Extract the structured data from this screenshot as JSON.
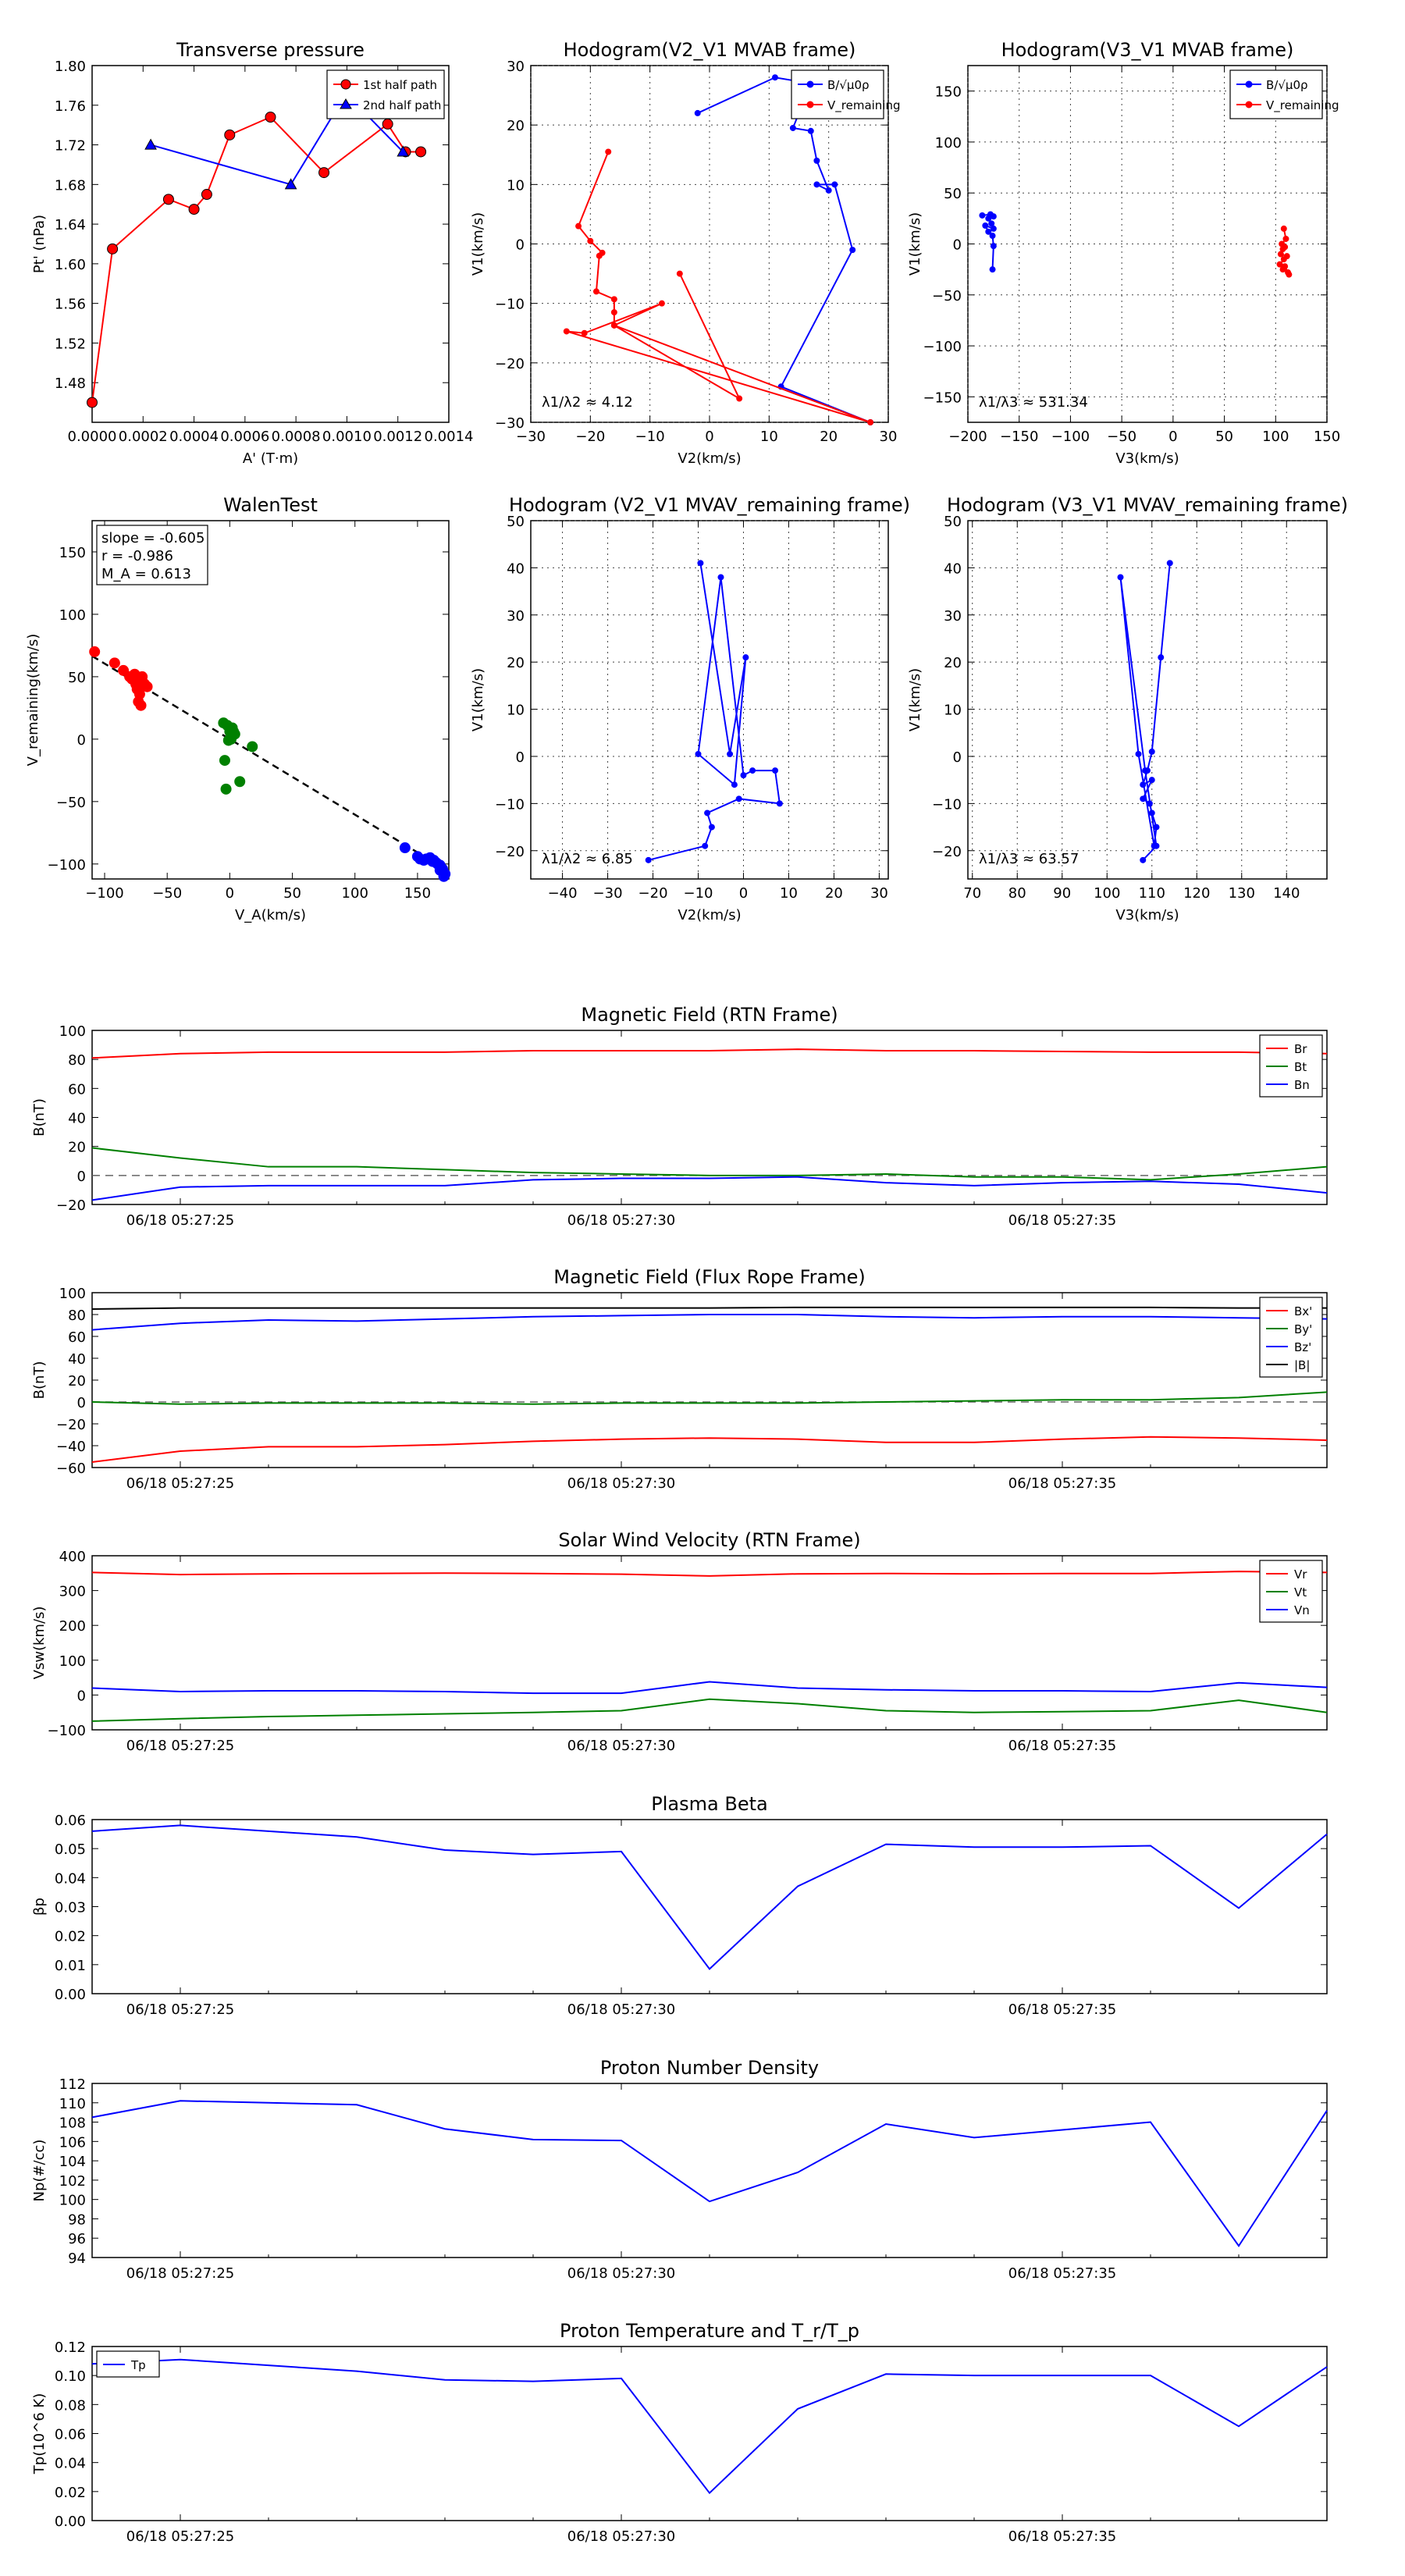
{
  "chart_data": [
    {
      "id": "tp",
      "type": "line",
      "title": "Transverse pressure",
      "xlabel": "A' (T·m)",
      "ylabel": "Pt' (nPa)",
      "xlim": [
        0,
        0.0014
      ],
      "ylim": [
        1.44,
        1.8
      ],
      "xticks": [
        "0.0000",
        "0.0002",
        "0.0004",
        "0.0006",
        "0.0008",
        "0.0010",
        "0.0012",
        "0.0014"
      ],
      "yticks": [
        "1.48",
        "1.52",
        "1.56",
        "1.60",
        "1.64",
        "1.68",
        "1.72",
        "1.76",
        "1.80"
      ],
      "legend": {
        "position": "top-right",
        "entries": [
          "1st half path",
          "2nd half path"
        ]
      },
      "series": [
        {
          "name": "1st half path",
          "color": "#ff0000",
          "marker": "circle",
          "x": [
            0.0,
            8e-05,
            0.0003,
            0.0004,
            0.00045,
            0.00054,
            0.0007,
            0.00091,
            0.00116,
            0.00123,
            0.00129
          ],
          "y": [
            1.46,
            1.615,
            1.665,
            1.655,
            1.67,
            1.73,
            1.748,
            1.692,
            1.741,
            1.713,
            1.713
          ]
        },
        {
          "name": "2nd half path",
          "color": "#0000ff",
          "marker": "triangle",
          "x": [
            0.00023,
            0.00078,
            0.00095,
            0.00106,
            0.00122
          ],
          "y": [
            1.72,
            1.68,
            1.752,
            1.755,
            1.713
          ]
        }
      ]
    },
    {
      "id": "h1",
      "type": "line",
      "title": "Hodogram(V2_V1 MVAB frame)",
      "xlabel": "V2(km/s)",
      "ylabel": "V1(km/s)",
      "xlim": [
        -30,
        30
      ],
      "ylim": [
        -30,
        30
      ],
      "xticks": [
        "−30",
        "−20",
        "−10",
        "0",
        "10",
        "20",
        "30"
      ],
      "yticks": [
        "−30",
        "−20",
        "−10",
        "0",
        "10",
        "20",
        "30"
      ],
      "legend": {
        "position": "top-right",
        "entries": [
          "B/√μ0ρ",
          "V_remaining"
        ]
      },
      "annotation": "λ1/λ2 ≈ 4.12",
      "series": [
        {
          "name": "B/√μ0ρ",
          "color": "#0000ff",
          "x": [
            -2,
            11,
            17,
            14,
            17,
            18,
            20,
            18,
            21,
            24,
            12,
            27
          ],
          "y": [
            22,
            28,
            27,
            19.5,
            19,
            14,
            9,
            10,
            10,
            -1,
            -24,
            -30
          ]
        },
        {
          "name": "V_remaining",
          "color": "#ff0000",
          "x": [
            -17,
            -22,
            -20,
            -18,
            -18.5,
            -19,
            -16,
            -16,
            -16,
            -8,
            -21,
            -24,
            27,
            -16,
            5,
            -5
          ],
          "y": [
            15.5,
            3,
            0.5,
            -1.5,
            -2,
            -8,
            -9.3,
            -11.5,
            -13.7,
            -10,
            -15,
            -14.7,
            -30,
            -13.7,
            -26,
            -5
          ]
        }
      ]
    },
    {
      "id": "h2",
      "type": "line",
      "title": "Hodogram(V3_V1 MVAB frame)",
      "xlabel": "V3(km/s)",
      "ylabel": "V1(km/s)",
      "xlim": [
        -200,
        150
      ],
      "ylim": [
        -175,
        175
      ],
      "xticks": [
        "−200",
        "−150",
        "−100",
        "−50",
        "0",
        "50",
        "100",
        "150"
      ],
      "yticks": [
        "−150",
        "−100",
        "−50",
        "0",
        "50",
        "100",
        "150"
      ],
      "legend": {
        "position": "top-right",
        "entries": [
          "B/√μ0ρ",
          "V_remaining"
        ]
      },
      "annotation": "λ1/λ3 ≈ 531.34",
      "series": [
        {
          "name": "B/√μ0ρ",
          "color": "#0000ff",
          "x": [
            -186,
            -178,
            -175,
            -180,
            -177,
            -175,
            -183,
            -180,
            -176,
            -175,
            -176
          ],
          "y": [
            28,
            29,
            27,
            25,
            20,
            15,
            18,
            12,
            8,
            -2,
            -25
          ]
        },
        {
          "name": "V_remaining",
          "color": "#ff0000",
          "x": [
            108,
            110,
            106,
            107,
            109,
            105,
            111,
            108,
            104,
            107,
            112,
            109,
            113
          ],
          "y": [
            15,
            5,
            0,
            -5,
            -3,
            -10,
            -12,
            -15,
            -20,
            -25,
            -28,
            -22,
            -30
          ]
        }
      ]
    },
    {
      "id": "walen",
      "type": "scatter",
      "title": "WalenTest",
      "xlabel": "V_A(km/s)",
      "ylabel": "V_remaining(km/s)",
      "xlim": [
        -110,
        175
      ],
      "ylim": [
        -112,
        175
      ],
      "xticks": [
        "−100",
        "−50",
        "0",
        "50",
        "100",
        "150"
      ],
      "yticks": [
        "−100",
        "−50",
        "0",
        "50",
        "100",
        "150"
      ],
      "stats": [
        "slope = -0.605",
        "r = -0.986",
        "M_A = 0.613"
      ],
      "fit_line": {
        "slope": -0.605,
        "intercept": 0
      },
      "series": [
        {
          "name": "red",
          "color": "#ff0000",
          "x": [
            -108,
            -92,
            -85,
            -80,
            -78,
            -76,
            -74,
            -72,
            -70,
            -68,
            -72,
            -74,
            -73,
            -71,
            -69,
            -66,
            -75
          ],
          "y": [
            70,
            61,
            55,
            50,
            48,
            52,
            46,
            44,
            50,
            44,
            36,
            40,
            30,
            27,
            45,
            42,
            44
          ]
        },
        {
          "name": "green",
          "color": "#008000",
          "x": [
            -5,
            -2,
            0,
            2,
            4,
            3,
            -1,
            -4,
            18,
            8,
            -3,
            1
          ],
          "y": [
            13,
            11,
            6,
            9,
            4,
            6,
            -1,
            -17,
            -6,
            -34,
            -40,
            0
          ]
        },
        {
          "name": "blue",
          "color": "#0000ff",
          "x": [
            140,
            150,
            152,
            155,
            157,
            160,
            162,
            165,
            168,
            170,
            172,
            171,
            168,
            166,
            163
          ],
          "y": [
            -87,
            -94,
            -96,
            -97,
            -96,
            -95,
            -98,
            -99,
            -101,
            -104,
            -108,
            -110,
            -105,
            -100,
            -97
          ]
        }
      ]
    },
    {
      "id": "h3",
      "type": "line",
      "title": "Hodogram (V2_V1 MVAV_remaining frame)",
      "xlabel": "V2(km/s)",
      "ylabel": "V1(km/s)",
      "xlim": [
        -47,
        32
      ],
      "ylim": [
        -26,
        50
      ],
      "xticks": [
        "−40",
        "−30",
        "−20",
        "−10",
        "0",
        "10",
        "20",
        "30"
      ],
      "yticks": [
        "−20",
        "−10",
        "0",
        "10",
        "20",
        "30",
        "40",
        "50"
      ],
      "annotation": "λ1/λ2 ≈ 6.85",
      "series": [
        {
          "name": "path",
          "color": "#0000ff",
          "x": [
            -9.5,
            -3,
            0.5,
            -2,
            -10,
            -5,
            0,
            2,
            7,
            8,
            -1,
            -8,
            -7,
            -8.5,
            -21
          ],
          "y": [
            41,
            0.5,
            21,
            -6,
            0.5,
            38,
            -4,
            -3,
            -3,
            -10,
            -9,
            -12,
            -15,
            -19,
            -22
          ]
        }
      ]
    },
    {
      "id": "h4",
      "type": "line",
      "title": "Hodogram (V3_V1 MVAV_remaining frame)",
      "xlabel": "V3(km/s)",
      "ylabel": "V1(km/s)",
      "xlim": [
        69,
        149
      ],
      "ylim": [
        -26,
        50
      ],
      "xticks": [
        "70",
        "80",
        "90",
        "100",
        "110",
        "120",
        "130",
        "140"
      ],
      "yticks": [
        "−20",
        "−10",
        "0",
        "10",
        "20",
        "30",
        "40",
        "50"
      ],
      "annotation": "λ1/λ3 ≈ 63.57",
      "series": [
        {
          "name": "path",
          "color": "#0000ff",
          "x": [
            114,
            112,
            110,
            109,
            108,
            110,
            108,
            109.5,
            110,
            111,
            110.5,
            107,
            103,
            108.5,
            111,
            108
          ],
          "y": [
            41,
            21,
            1,
            -3,
            -6,
            -5,
            -9,
            -10,
            -12,
            -15,
            -19,
            0.5,
            38,
            -3,
            -19,
            -22
          ]
        }
      ]
    },
    {
      "id": "mag_rtn",
      "type": "line",
      "title": "Magnetic Field (RTN Frame)",
      "ylabel": "B(nT)",
      "ylim": [
        -20,
        100
      ],
      "yticks": [
        "−20",
        "0",
        "20",
        "40",
        "60",
        "80",
        "100"
      ],
      "xtick_labels": [
        "06/18 05:27:25",
        "06/18 05:27:30",
        "06/18 05:27:35"
      ],
      "xtick_pos": [
        1,
        6,
        11
      ],
      "n": 15,
      "dashed_zero": true,
      "legend": {
        "position": "top-right",
        "entries": [
          "Br",
          "Bt",
          "Bn"
        ]
      },
      "series": [
        {
          "name": "Br",
          "color": "#ff0000",
          "values": [
            81,
            84,
            85,
            85,
            85,
            86,
            86,
            86,
            87,
            86,
            86,
            85.5,
            85,
            85,
            84
          ]
        },
        {
          "name": "Bt",
          "color": "#008000",
          "values": [
            19,
            12,
            6,
            6,
            4,
            2,
            1,
            0,
            0,
            1,
            -1,
            -1,
            -3,
            1,
            6
          ]
        },
        {
          "name": "Bn",
          "color": "#0000ff",
          "values": [
            -17,
            -8,
            -7,
            -7,
            -7,
            -3,
            -2,
            -2,
            -1,
            -5,
            -7,
            -5,
            -4,
            -6,
            -12
          ]
        }
      ]
    },
    {
      "id": "mag_fr",
      "type": "line",
      "title": "Magnetic Field (Flux Rope Frame)",
      "ylabel": "B(nT)",
      "ylim": [
        -60,
        100
      ],
      "yticks": [
        "−60",
        "−40",
        "−20",
        "0",
        "20",
        "40",
        "60",
        "80",
        "100"
      ],
      "xtick_labels": [
        "06/18 05:27:25",
        "06/18 05:27:30",
        "06/18 05:27:35"
      ],
      "xtick_pos": [
        1,
        6,
        11
      ],
      "n": 15,
      "dashed_zero": true,
      "legend": {
        "position": "top-right",
        "entries": [
          "Bx'",
          "By'",
          "Bz'",
          "|B|"
        ]
      },
      "series": [
        {
          "name": "Bx'",
          "color": "#ff0000",
          "values": [
            -55,
            -45,
            -41,
            -41,
            -39,
            -36,
            -34,
            -33,
            -34,
            -37,
            -37,
            -34,
            -32,
            -33,
            -35
          ]
        },
        {
          "name": "By'",
          "color": "#008000",
          "values": [
            0,
            -2,
            -1,
            -1,
            -1,
            -2,
            -1,
            -1,
            -1,
            0,
            1,
            2,
            2,
            4,
            9
          ]
        },
        {
          "name": "Bz'",
          "color": "#0000ff",
          "values": [
            66,
            72,
            75,
            74,
            76,
            78,
            79,
            80,
            80,
            78,
            77,
            78,
            78,
            77,
            76
          ]
        },
        {
          "name": "|B|",
          "color": "#000000",
          "values": [
            85,
            86,
            86,
            86,
            86,
            86,
            86,
            86,
            86.5,
            86.5,
            86.5,
            86.5,
            86.5,
            86,
            86
          ]
        }
      ]
    },
    {
      "id": "vel",
      "type": "line",
      "title": "Solar Wind Velocity (RTN Frame)",
      "ylabel": "Vsw(km/s)",
      "ylim": [
        -100,
        400
      ],
      "yticks": [
        "−100",
        "0",
        "100",
        "200",
        "300",
        "400"
      ],
      "xtick_labels": [
        "06/18 05:27:25",
        "06/18 05:27:30",
        "06/18 05:27:35"
      ],
      "xtick_pos": [
        1,
        6,
        11
      ],
      "n": 15,
      "legend": {
        "position": "top-right",
        "entries": [
          "Vr",
          "Vt",
          "Vn"
        ]
      },
      "series": [
        {
          "name": "Vr",
          "color": "#ff0000",
          "values": [
            352,
            346,
            348,
            349,
            350,
            349,
            347,
            342,
            348,
            349,
            348,
            349,
            349,
            355,
            352
          ]
        },
        {
          "name": "Vt",
          "color": "#008000",
          "values": [
            -75,
            -68,
            -62,
            -58,
            -54,
            -50,
            -45,
            -12,
            -25,
            -45,
            -50,
            -48,
            -45,
            -15,
            -50
          ]
        },
        {
          "name": "Vn",
          "color": "#0000ff",
          "values": [
            20,
            10,
            12,
            12,
            10,
            5,
            5,
            38,
            20,
            15,
            12,
            12,
            10,
            35,
            22
          ]
        }
      ]
    },
    {
      "id": "beta",
      "type": "line",
      "title": "Plasma Beta",
      "ylabel": "βp",
      "ylim": [
        0,
        0.06
      ],
      "yticks": [
        "0.00",
        "0.01",
        "0.02",
        "0.03",
        "0.04",
        "0.05",
        "0.06"
      ],
      "xtick_labels": [
        "06/18 05:27:25",
        "06/18 05:27:30",
        "06/18 05:27:35"
      ],
      "xtick_pos": [
        1,
        6,
        11
      ],
      "n": 15,
      "series": [
        {
          "name": "beta",
          "color": "#0000ff",
          "values": [
            0.056,
            0.058,
            0.056,
            0.054,
            0.0495,
            0.048,
            0.049,
            0.0085,
            0.037,
            0.0515,
            0.0505,
            0.0505,
            0.051,
            0.0295,
            0.055
          ]
        }
      ]
    },
    {
      "id": "np",
      "type": "line",
      "title": "Proton Number Density",
      "ylabel": "Np(#/cc)",
      "ylim": [
        94,
        112
      ],
      "yticks": [
        "94",
        "96",
        "98",
        "100",
        "102",
        "104",
        "106",
        "108",
        "110",
        "112"
      ],
      "xtick_labels": [
        "06/18 05:27:25",
        "06/18 05:27:30",
        "06/18 05:27:35"
      ],
      "xtick_pos": [
        1,
        6,
        11
      ],
      "n": 15,
      "series": [
        {
          "name": "Np",
          "color": "#0000ff",
          "values": [
            108.5,
            110.2,
            110,
            109.8,
            107.3,
            106.2,
            106.1,
            99.8,
            102.8,
            107.8,
            106.4,
            107.2,
            108,
            95.2,
            109.2
          ]
        }
      ]
    },
    {
      "id": "tpr",
      "type": "line",
      "title": "Proton Temperature and T_r/T_p",
      "ylabel": "Tp(10^6 K)",
      "ylim": [
        0,
        0.12
      ],
      "yticks": [
        "0.00",
        "0.02",
        "0.04",
        "0.06",
        "0.08",
        "0.10",
        "0.12"
      ],
      "xtick_labels": [
        "06/18 05:27:25",
        "06/18 05:27:30",
        "06/18 05:27:35"
      ],
      "xtick_pos": [
        1,
        6,
        11
      ],
      "n": 15,
      "legend": {
        "position": "top-left",
        "entries": [
          "Tp"
        ]
      },
      "series": [
        {
          "name": "Tp",
          "color": "#0000ff",
          "values": [
            0.108,
            0.111,
            0.107,
            0.103,
            0.097,
            0.096,
            0.098,
            0.019,
            0.077,
            0.101,
            0.1,
            0.1,
            0.1,
            0.065,
            0.106
          ]
        }
      ]
    }
  ]
}
